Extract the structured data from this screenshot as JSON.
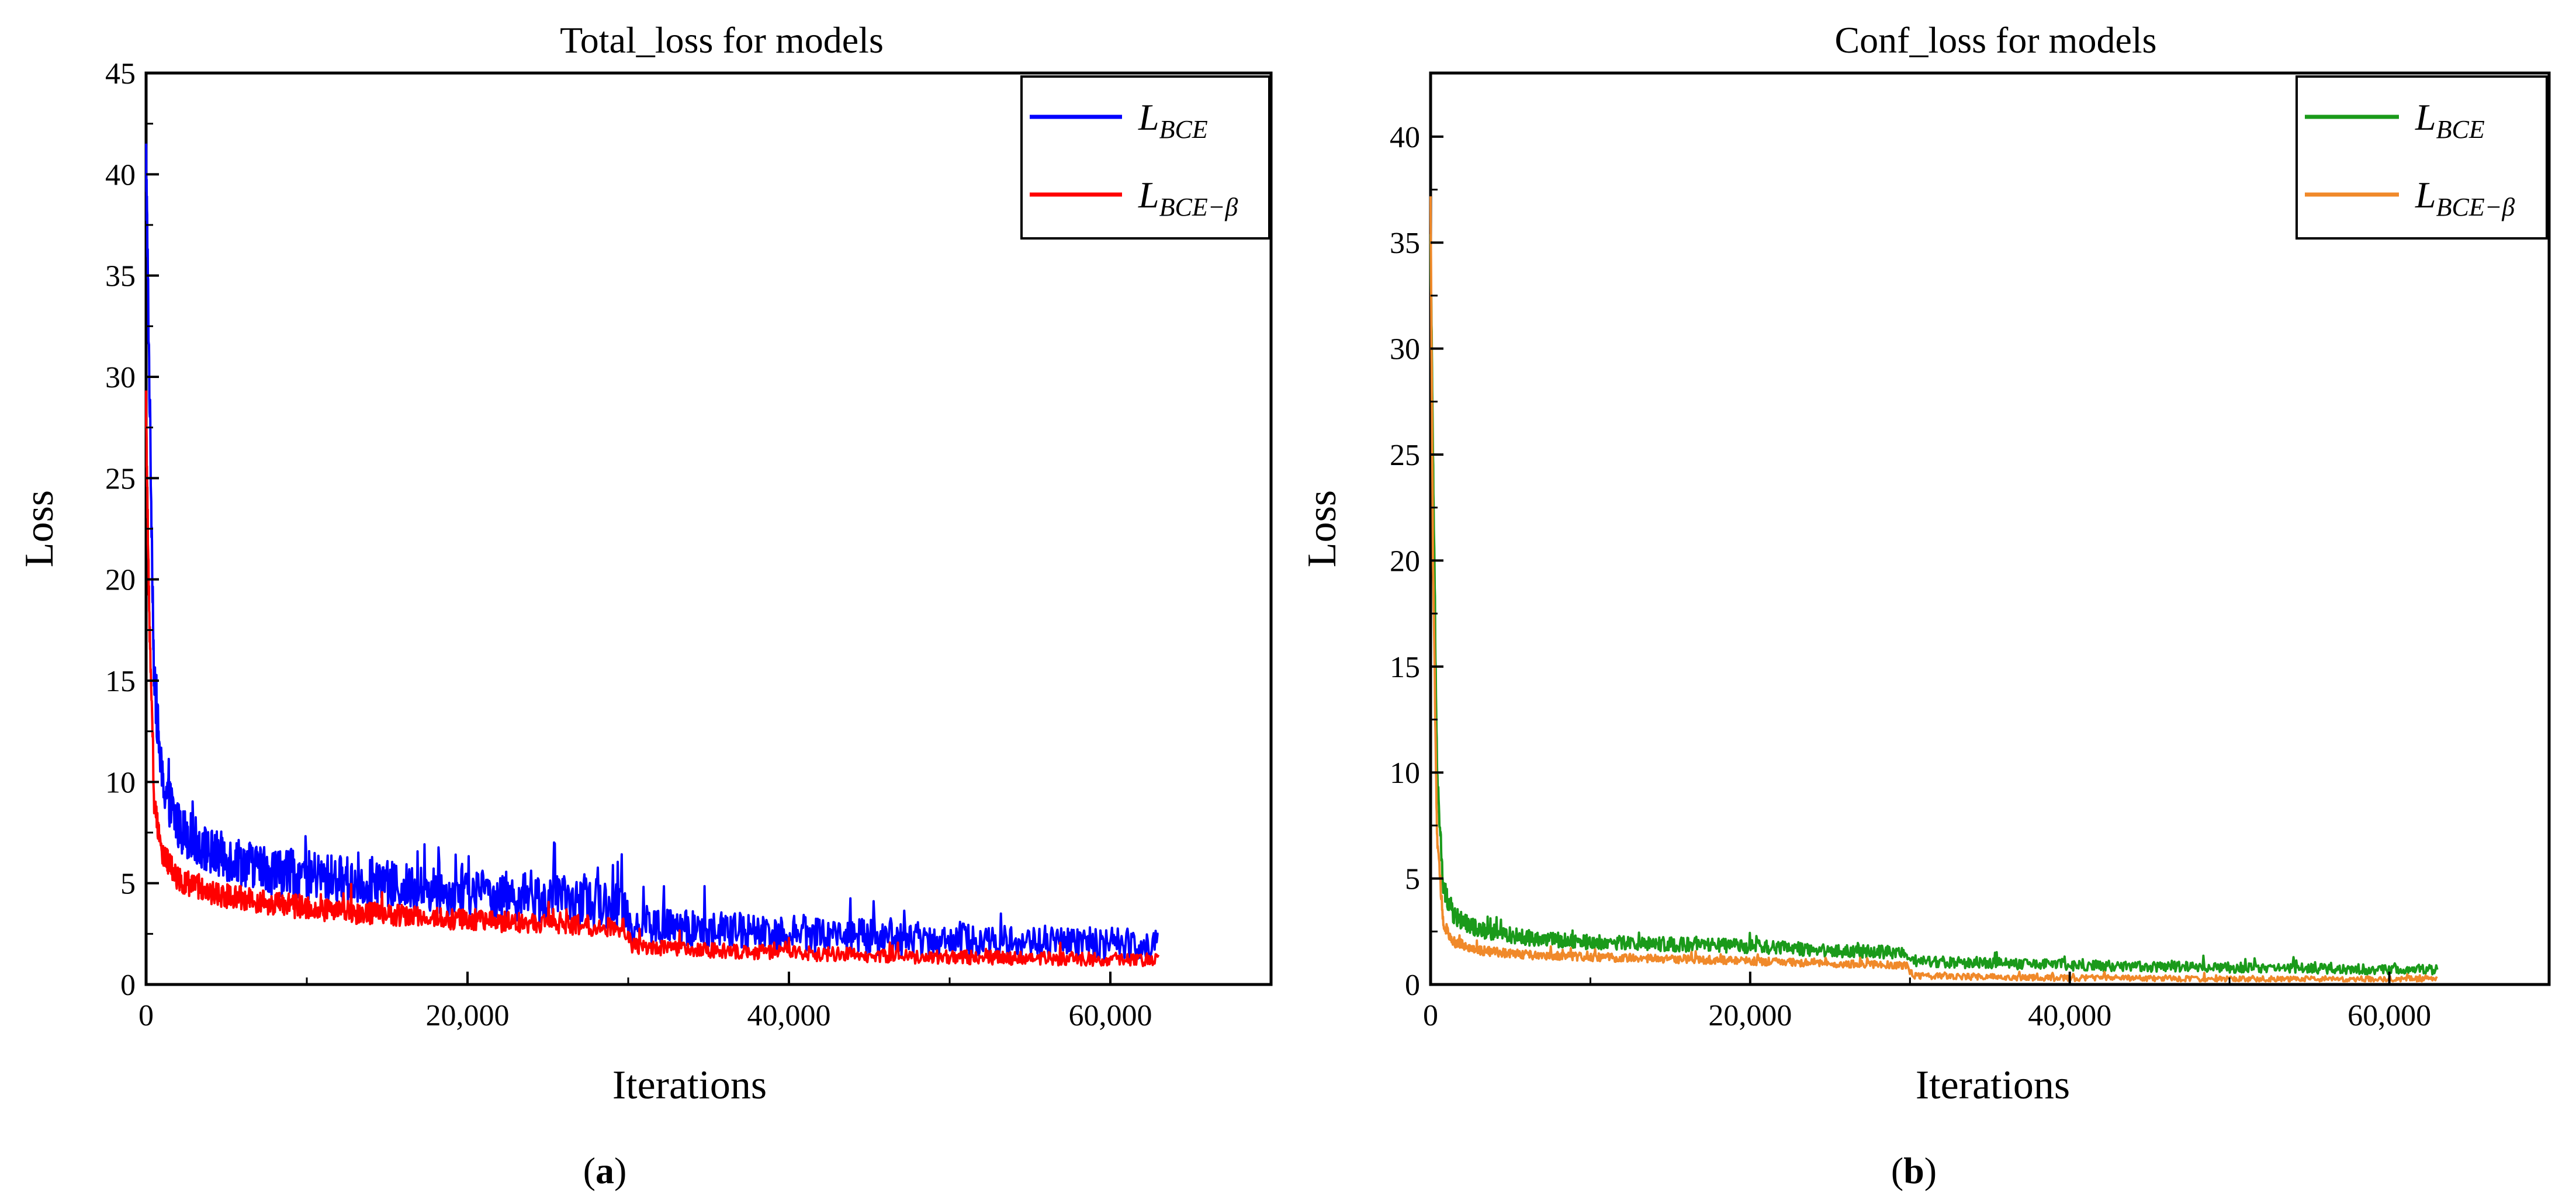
{
  "chart_data": [
    {
      "type": "line",
      "title": "Total_loss for models",
      "xlabel": "Iterations",
      "ylabel": "Loss",
      "xlim": [
        0,
        70000
      ],
      "ylim": [
        0,
        45
      ],
      "xticks": [
        0,
        20000,
        40000,
        60000
      ],
      "xtick_labels": [
        "0",
        "20,000",
        "40,000",
        "60,000"
      ],
      "yticks": [
        0,
        5,
        10,
        15,
        20,
        25,
        30,
        35,
        40,
        45
      ],
      "ytick_labels": [
        "0",
        "5",
        "10",
        "15",
        "20",
        "25",
        "30",
        "35",
        "40",
        "45"
      ],
      "legend_position": "top-right",
      "caption": "a",
      "series": [
        {
          "name": "L_BCE",
          "legend_main": "L",
          "legend_sub": "BCE",
          "color": "#0000ff",
          "x": [
            0,
            200,
            500,
            1000,
            2000,
            4000,
            8000,
            12000,
            16000,
            20000,
            24000,
            28000,
            29800,
            30200,
            34000,
            38000,
            42000,
            46000,
            50000,
            54000,
            58000,
            63000
          ],
          "y": [
            41,
            30,
            15,
            10,
            7.8,
            6.5,
            5.6,
            5.2,
            4.8,
            4.5,
            4.3,
            4.0,
            3.9,
            2.9,
            2.7,
            2.6,
            2.5,
            2.3,
            2.2,
            2.1,
            2.0,
            2.0
          ],
          "noise": 1.2
        },
        {
          "name": "L_BCE-β",
          "legend_main": "L",
          "legend_sub": "BCE−β",
          "color": "#ff0000",
          "x": [
            0,
            200,
            500,
            1000,
            2000,
            4000,
            8000,
            12000,
            16000,
            20000,
            24000,
            28000,
            29800,
            30200,
            34000,
            38000,
            42000,
            46000,
            50000,
            54000,
            58000,
            63000
          ],
          "y": [
            28,
            18,
            9,
            6.5,
            5.2,
            4.5,
            4.0,
            3.6,
            3.4,
            3.2,
            3.0,
            2.9,
            2.8,
            1.9,
            1.7,
            1.6,
            1.5,
            1.4,
            1.35,
            1.3,
            1.25,
            1.2
          ],
          "noise": 0.6
        }
      ]
    },
    {
      "type": "line",
      "title": "Conf_loss for models",
      "xlabel": "Iterations",
      "ylabel": "Loss",
      "xlim": [
        0,
        70000
      ],
      "ylim": [
        0,
        43
      ],
      "xticks": [
        0,
        20000,
        40000,
        60000
      ],
      "xtick_labels": [
        "0",
        "20,000",
        "40,000",
        "60,000"
      ],
      "yticks": [
        0,
        5,
        10,
        15,
        20,
        25,
        30,
        35,
        40
      ],
      "ytick_labels": [
        "0",
        "5",
        "10",
        "15",
        "20",
        "25",
        "30",
        "35",
        "40"
      ],
      "legend_position": "top-right",
      "caption": "b",
      "series": [
        {
          "name": "L_BCE",
          "legend_main": "L",
          "legend_sub": "BCE",
          "color": "#1a9a1a",
          "x": [
            0,
            150,
            400,
            800,
            1500,
            3000,
            6000,
            10000,
            15000,
            20000,
            25000,
            29800,
            30200,
            35000,
            40000,
            45000,
            50000,
            55000,
            60000,
            63000
          ],
          "y": [
            35,
            25,
            10,
            4.5,
            3.2,
            2.6,
            2.2,
            2.0,
            1.9,
            1.8,
            1.6,
            1.5,
            1.1,
            1.0,
            0.9,
            0.85,
            0.8,
            0.75,
            0.7,
            0.7
          ],
          "noise": 0.5
        },
        {
          "name": "L_BCE-β",
          "legend_main": "L",
          "legend_sub": "BCE−β",
          "color": "#f0892a",
          "x": [
            0,
            150,
            400,
            800,
            1500,
            3000,
            6000,
            10000,
            15000,
            20000,
            25000,
            29800,
            30200,
            35000,
            40000,
            45000,
            50000,
            55000,
            60000,
            63000
          ],
          "y": [
            37,
            20,
            7,
            2.8,
            2.0,
            1.6,
            1.4,
            1.3,
            1.2,
            1.1,
            1.0,
            0.9,
            0.4,
            0.35,
            0.3,
            0.3,
            0.25,
            0.25,
            0.25,
            0.25
          ],
          "noise": 0.35
        }
      ]
    }
  ]
}
